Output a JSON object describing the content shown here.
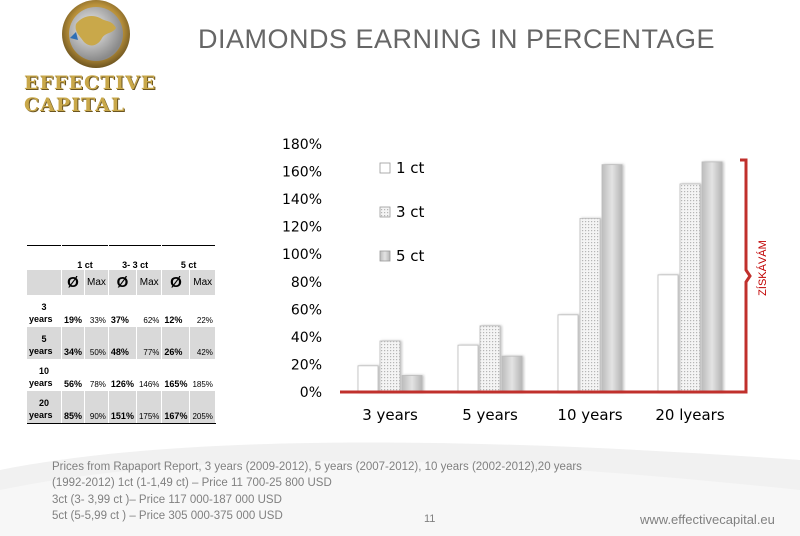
{
  "logo": {
    "text": "EFFECTIVE CAPITAL"
  },
  "title": "DIAMONDS EARNING IN PERCENTAGE",
  "table": {
    "headers": [
      "1 ct",
      "3- 3 ct",
      "5 ct"
    ],
    "avg_symbol": "Ø",
    "max_label": "Max",
    "rows": [
      {
        "year_num": "3",
        "year_word": "years",
        "v": [
          "19%",
          "33%",
          "37%",
          "62%",
          "12%",
          "22%"
        ]
      },
      {
        "year_num": "5",
        "year_word": "years",
        "v": [
          "34%",
          "50%",
          "48%",
          "77%",
          "26%",
          "42%"
        ]
      },
      {
        "year_num": "10",
        "year_word": "years",
        "v": [
          "56%",
          "78%",
          "126%",
          "146%",
          "165%",
          "185%"
        ]
      },
      {
        "year_num": "20",
        "year_word": "years",
        "v": [
          "85%",
          "90%",
          "151%",
          "175%",
          "167%",
          "205%"
        ]
      }
    ]
  },
  "chart_data": {
    "type": "bar",
    "categories": [
      "3 years",
      "5 years",
      "10 years",
      "20 lyears"
    ],
    "series": [
      {
        "name": "1 ct",
        "values": [
          19,
          34,
          56,
          85
        ],
        "color": "#ffffff"
      },
      {
        "name": "3 ct",
        "values": [
          37,
          48,
          126,
          151
        ],
        "color": "#eeeeee"
      },
      {
        "name": "5 ct",
        "values": [
          12,
          26,
          165,
          167
        ],
        "color": "#cfcfcf"
      }
    ],
    "ylim": [
      0,
      180
    ],
    "yticks": [
      "0%",
      "20%",
      "40%",
      "60%",
      "80%",
      "100%",
      "120%",
      "140%",
      "160%",
      "180%"
    ],
    "legend_position": "top-left",
    "bracket_label": "ZÍSKÁVÁM",
    "axis_color": "#c0302c"
  },
  "notes": [
    "Prices from Rapaport Report, 3 years (2009-2012), 5 years  (2007-2012), 10 years  (2002-2012),20 years",
    "(1992-2012) 1ct  (1-1,49 ct) – Price 11 700-25 800 USD",
    "3ct (3- 3,99 ct )– Price 117 000-187 000 USD",
    "5ct (5-5,99 ct ) – Price 305 000-375 000 USD"
  ],
  "page_number": "11",
  "url": "www.effectivecapital.eu"
}
